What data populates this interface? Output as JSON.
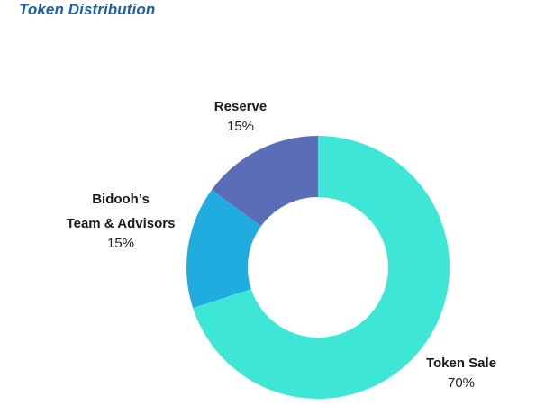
{
  "page": {
    "title": "Token Distribution"
  },
  "chart_data": {
    "type": "pie",
    "variant": "donut",
    "title": "Token Distribution",
    "start_angle_deg": 0,
    "direction": "clockwise",
    "slices": [
      {
        "label": "Token Sale",
        "label_lines": [
          "Token Sale"
        ],
        "value": 70,
        "display": "70%",
        "color": "#3ee6d6"
      },
      {
        "label": "Bidooh’s Team & Advisors",
        "label_lines": [
          "Bidooh’s",
          "Team & Advisors"
        ],
        "value": 15,
        "display": "15%",
        "color": "#21ace0"
      },
      {
        "label": "Reserve",
        "label_lines": [
          "Reserve"
        ],
        "value": 15,
        "display": "15%",
        "color": "#5b6db6"
      }
    ],
    "legend": "none",
    "grid": false
  }
}
